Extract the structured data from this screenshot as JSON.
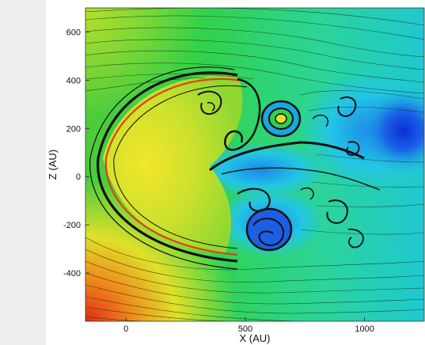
{
  "chart_data": {
    "type": "heatmap",
    "title": "",
    "xlabel": "X (AU)",
    "ylabel": "Z (AU)",
    "xlim": [
      -170,
      1250
    ],
    "ylim": [
      -600,
      700
    ],
    "x_ticks": [
      0,
      500,
      1000
    ],
    "x_tick_labels": [
      "0",
      "500",
      "1000"
    ],
    "y_ticks": [
      -400,
      -200,
      0,
      200,
      400,
      600
    ],
    "y_tick_labels": [
      "-400",
      "-200",
      "0",
      "200",
      "400",
      "600"
    ],
    "grid": false,
    "legend": "none",
    "colormap": [
      "#0a2bd6",
      "#18c8e8",
      "#22d455",
      "#e8e82a",
      "#e83a1a"
    ],
    "background_color": "#31d248",
    "contour_color": "#0b2a12",
    "bow_shock_apex": {
      "x": -60,
      "z": 60
    }
  }
}
